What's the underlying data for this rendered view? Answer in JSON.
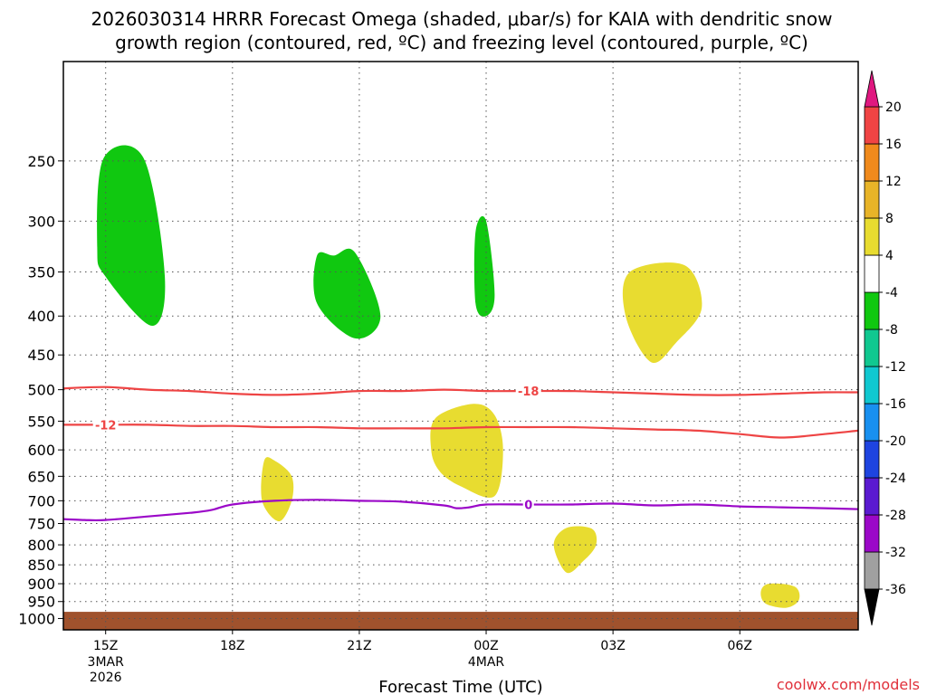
{
  "title_line1": "2026030314 HRRR Forecast Omega (shaded, μbar/s) for KAIA with dendritic snow",
  "title_line2": "growth region (contoured, red, ºC) and freezing level (contoured, purple, ºC)",
  "credit": "coolwx.com/models",
  "chart_data": {
    "type": "time-height cross section",
    "xlabel": "Forecast Time (UTC)",
    "x_range_hours": [
      -1.0,
      17.8
    ],
    "x_ticks": [
      {
        "hour": 0,
        "label": "15Z",
        "sub": [
          "3MAR",
          "2026"
        ]
      },
      {
        "hour": 3,
        "label": "18Z",
        "sub": []
      },
      {
        "hour": 6,
        "label": "21Z",
        "sub": []
      },
      {
        "hour": 9,
        "label": "00Z",
        "sub": [
          "4MAR"
        ]
      },
      {
        "hour": 12,
        "label": "03Z",
        "sub": []
      },
      {
        "hour": 15,
        "label": "06Z",
        "sub": []
      }
    ],
    "y_axis": "pressure (hPa), log scale, decreasing upward",
    "y_range_hpa": [
      1035,
      185
    ],
    "y_ticks": [
      250,
      300,
      350,
      400,
      450,
      500,
      550,
      600,
      650,
      700,
      750,
      800,
      850,
      900,
      950,
      1000
    ],
    "grid": "dotted",
    "ground_color": "#a0522d",
    "ground_top_hpa": 980,
    "omega_colorbar": {
      "levels": [
        "-36",
        "-32",
        "-28",
        "-24",
        "-20",
        "-16",
        "-12",
        "-8",
        "-4",
        "4",
        "8",
        "12",
        "16",
        "20"
      ],
      "colors": [
        "#000000",
        "#a0a0a0",
        "#9b08c8",
        "#5a1ad0",
        "#1e44e0",
        "#1890f0",
        "#10c8d0",
        "#10c890",
        "#10c810",
        "#ffffff",
        "#e8dc30",
        "#e8b428",
        "#f08a1c",
        "#f04444",
        "#e01880"
      ]
    },
    "omega_regions": [
      {
        "value_band": "-8 to -4",
        "color": "#10c810",
        "points": [
          [
            -0.05,
            248
          ],
          [
            0.9,
            248
          ],
          [
            1.4,
            355
          ],
          [
            1.1,
            412
          ],
          [
            0.0,
            355
          ],
          [
            -0.2,
            325
          ]
        ]
      },
      {
        "value_band": "-8 to -4",
        "color": "#10c810",
        "points": [
          [
            5.0,
            333
          ],
          [
            5.4,
            333
          ],
          [
            5.9,
            330
          ],
          [
            6.5,
            400
          ],
          [
            5.9,
            428
          ],
          [
            5.0,
            385
          ]
        ]
      },
      {
        "value_band": "-8 to -4",
        "color": "#10c810",
        "points": [
          [
            8.75,
            310
          ],
          [
            9.0,
            300
          ],
          [
            9.2,
            375
          ],
          [
            9.0,
            400
          ],
          [
            8.75,
            385
          ]
        ]
      },
      {
        "value_band": "4 to 8",
        "color": "#e8dc30",
        "points": [
          [
            12.4,
            350
          ],
          [
            13.7,
            343
          ],
          [
            14.1,
            390
          ],
          [
            13.5,
            433
          ],
          [
            12.9,
            460
          ],
          [
            12.3,
            400
          ]
        ]
      },
      {
        "value_band": "4 to 8",
        "color": "#e8dc30",
        "points": [
          [
            7.8,
            545
          ],
          [
            8.7,
            522
          ],
          [
            9.2,
            540
          ],
          [
            9.4,
            600
          ],
          [
            9.2,
            690
          ],
          [
            8.4,
            670
          ],
          [
            7.9,
            640
          ],
          [
            7.7,
            600
          ]
        ]
      },
      {
        "value_band": "4 to 8",
        "color": "#e8dc30",
        "points": [
          [
            3.75,
            620
          ],
          [
            4.0,
            620
          ],
          [
            4.4,
            650
          ],
          [
            4.4,
            700
          ],
          [
            4.1,
            745
          ],
          [
            3.7,
            700
          ]
        ]
      },
      {
        "value_band": "4 to 8",
        "color": "#e8dc30",
        "points": [
          [
            10.9,
            760
          ],
          [
            11.5,
            762
          ],
          [
            11.6,
            800
          ],
          [
            11.3,
            840
          ],
          [
            10.9,
            870
          ],
          [
            10.6,
            800
          ]
        ]
      },
      {
        "value_band": "4 to 8",
        "color": "#e8dc30",
        "points": [
          [
            15.7,
            900
          ],
          [
            16.3,
            908
          ],
          [
            16.4,
            945
          ],
          [
            16.1,
            968
          ],
          [
            15.6,
            955
          ],
          [
            15.5,
            920
          ]
        ]
      }
    ],
    "contours": [
      {
        "name": "-18",
        "color": "#ee4444",
        "label_x": 10.0,
        "points": [
          [
            -1.0,
            498
          ],
          [
            0.0,
            496
          ],
          [
            1.0,
            500
          ],
          [
            2.0,
            502
          ],
          [
            3.0,
            506
          ],
          [
            4.0,
            508
          ],
          [
            5.0,
            506
          ],
          [
            6.0,
            502
          ],
          [
            7.0,
            502
          ],
          [
            8.0,
            500
          ],
          [
            9.0,
            502
          ],
          [
            10.0,
            502
          ],
          [
            11.0,
            502
          ],
          [
            12.0,
            504
          ],
          [
            13.0,
            506
          ],
          [
            14.0,
            508
          ],
          [
            15.0,
            508
          ],
          [
            16.0,
            506
          ],
          [
            17.0,
            504
          ],
          [
            17.8,
            504
          ]
        ]
      },
      {
        "name": "-12",
        "color": "#ee4444",
        "label_x": 0.0,
        "points": [
          [
            -1.0,
            556
          ],
          [
            0.0,
            556
          ],
          [
            1.0,
            556
          ],
          [
            2.0,
            558
          ],
          [
            3.0,
            558
          ],
          [
            4.0,
            560
          ],
          [
            5.0,
            560
          ],
          [
            6.0,
            562
          ],
          [
            7.0,
            562
          ],
          [
            8.0,
            562
          ],
          [
            9.0,
            560
          ],
          [
            10.0,
            560
          ],
          [
            11.0,
            560
          ],
          [
            12.0,
            562
          ],
          [
            13.0,
            564
          ],
          [
            14.0,
            566
          ],
          [
            15.0,
            572
          ],
          [
            16.0,
            578
          ],
          [
            17.0,
            572
          ],
          [
            17.8,
            566
          ]
        ]
      },
      {
        "name": "0",
        "color": "#9b08c8",
        "label_x": 10.0,
        "points": [
          [
            -1.0,
            740
          ],
          [
            -0.5,
            742
          ],
          [
            0.0,
            742
          ],
          [
            1.0,
            734
          ],
          [
            2.0,
            726
          ],
          [
            2.5,
            720
          ],
          [
            3.0,
            708
          ],
          [
            4.0,
            700
          ],
          [
            5.0,
            698
          ],
          [
            6.0,
            700
          ],
          [
            7.0,
            702
          ],
          [
            8.0,
            710
          ],
          [
            8.3,
            716
          ],
          [
            8.6,
            714
          ],
          [
            9.0,
            708
          ],
          [
            10.0,
            708
          ],
          [
            11.0,
            708
          ],
          [
            12.0,
            706
          ],
          [
            13.0,
            710
          ],
          [
            14.0,
            708
          ],
          [
            15.0,
            712
          ],
          [
            16.0,
            714
          ],
          [
            17.0,
            716
          ],
          [
            17.8,
            718
          ]
        ]
      }
    ]
  }
}
